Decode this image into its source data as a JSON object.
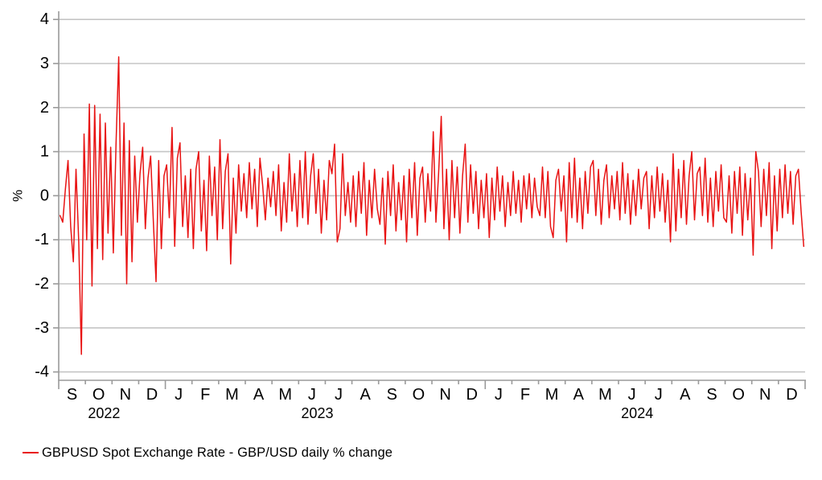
{
  "chart_data": {
    "type": "line",
    "title": "",
    "ylabel": "%",
    "ylim": [
      -4,
      4
    ],
    "y_ticks": [
      4,
      3,
      2,
      1,
      0,
      -1,
      -2,
      -3,
      -4
    ],
    "grid": "horizontal",
    "x_range": "Sep 2022 - Dec 2024",
    "months": [
      "S",
      "O",
      "N",
      "D",
      "J",
      "F",
      "M",
      "A",
      "M",
      "J",
      "J",
      "A",
      "S",
      "O",
      "N",
      "D",
      "J",
      "F",
      "M",
      "A",
      "M",
      "J",
      "J",
      "A",
      "S",
      "O",
      "N",
      "D"
    ],
    "years": [
      {
        "label": "2022",
        "center_month": 1.7
      },
      {
        "label": "2023",
        "center_month": 9.7
      },
      {
        "label": "2024",
        "center_month": 21.7
      }
    ],
    "legend_position": "bottom-left",
    "notable_points": [
      {
        "date_approx": "late Sep 2022",
        "value": -3.6,
        "note": "largest daily fall"
      },
      {
        "date_approx": "mid Nov 2022",
        "value": 3.15,
        "note": "largest daily rise"
      },
      {
        "date_approx": "Nov 2023",
        "value": 1.8,
        "note": "secondary peak"
      }
    ],
    "series": [
      {
        "name": "GBPUSD Spot Exchange Rate - GBP/USD daily % change",
        "color": "#e81313",
        "points_per_month": 10,
        "values": [
          -0.45,
          -0.6,
          0.15,
          0.8,
          -0.7,
          -1.5,
          0.6,
          -1.05,
          -3.6,
          1.4,
          -1.0,
          2.08,
          -2.05,
          2.05,
          -1.2,
          1.85,
          -1.45,
          1.65,
          -0.85,
          1.1,
          -1.3,
          1.2,
          3.15,
          -0.9,
          1.65,
          -2.0,
          1.25,
          -1.5,
          0.9,
          -0.6,
          0.5,
          1.1,
          -0.75,
          0.4,
          0.9,
          -0.6,
          -1.95,
          0.8,
          -1.2,
          0.45,
          0.7,
          -0.5,
          1.55,
          -1.15,
          0.85,
          1.2,
          -0.7,
          0.45,
          -0.95,
          0.6,
          -1.2,
          0.6,
          1.0,
          -0.8,
          0.35,
          -1.25,
          0.9,
          -0.45,
          0.65,
          -1.0,
          1.27,
          -0.75,
          0.55,
          0.95,
          -1.55,
          0.4,
          -0.85,
          0.7,
          -0.35,
          0.5,
          -0.5,
          0.75,
          -0.3,
          0.6,
          -0.7,
          0.85,
          0.25,
          -0.55,
          0.4,
          -0.25,
          0.55,
          -0.45,
          0.7,
          -0.8,
          0.3,
          -0.6,
          0.95,
          -0.35,
          0.5,
          -0.7,
          0.8,
          -0.5,
          1.0,
          -0.65,
          0.45,
          0.95,
          -0.4,
          0.6,
          -0.85,
          0.35,
          -0.55,
          0.8,
          0.5,
          1.17,
          -1.05,
          -0.75,
          0.95,
          -0.45,
          0.3,
          -0.6,
          0.45,
          -0.7,
          0.55,
          -0.4,
          0.75,
          -0.9,
          0.35,
          -0.5,
          0.6,
          -0.3,
          -0.65,
          0.4,
          -1.1,
          0.55,
          -0.45,
          0.7,
          -0.8,
          0.3,
          -0.55,
          0.45,
          -1.05,
          0.6,
          -0.5,
          0.75,
          -0.9,
          0.4,
          0.65,
          -0.6,
          0.5,
          -0.35,
          1.45,
          -0.6,
          0.5,
          1.8,
          -0.75,
          0.6,
          -1.0,
          0.8,
          -0.5,
          0.65,
          -0.85,
          0.45,
          1.17,
          -0.6,
          0.7,
          -0.4,
          0.55,
          -0.75,
          0.35,
          -0.5,
          0.5,
          -0.95,
          0.4,
          -0.55,
          0.65,
          -0.35,
          0.45,
          -0.7,
          0.3,
          -0.45,
          0.55,
          -0.4,
          0.35,
          -0.6,
          0.45,
          -0.3,
          0.5,
          -0.5,
          0.4,
          -0.25,
          -0.45,
          0.65,
          -0.5,
          0.55,
          -0.7,
          -0.95,
          0.35,
          0.6,
          -0.35,
          0.45,
          -1.05,
          0.75,
          -0.5,
          0.85,
          -0.6,
          0.4,
          -0.75,
          0.55,
          -0.4,
          0.65,
          0.8,
          -0.45,
          0.6,
          -0.65,
          0.35,
          0.7,
          -0.5,
          0.45,
          -0.3,
          0.55,
          -0.55,
          0.75,
          -0.4,
          0.5,
          -0.65,
          0.35,
          -0.45,
          0.6,
          -0.3,
          0.4,
          0.55,
          -0.75,
          0.45,
          -0.5,
          0.65,
          -0.35,
          0.5,
          -0.6,
          0.35,
          -1.05,
          0.95,
          -0.8,
          0.6,
          -0.5,
          0.8,
          -0.65,
          0.45,
          1.0,
          -0.55,
          0.5,
          0.65,
          -0.45,
          0.85,
          -0.6,
          0.4,
          -0.7,
          0.55,
          -0.35,
          0.7,
          -0.5,
          -0.6,
          0.45,
          -0.85,
          0.55,
          -0.4,
          0.65,
          -0.9,
          0.5,
          -0.55,
          0.4,
          -1.35,
          1.0,
          0.55,
          -0.7,
          0.6,
          -0.45,
          0.75,
          -1.2,
          0.45,
          -0.8,
          0.6,
          -0.5,
          0.7,
          -0.4,
          0.55,
          -0.65,
          0.45,
          0.6,
          -0.35,
          -1.15
        ]
      }
    ]
  },
  "legend": {
    "label": "GBPUSD Spot Exchange Rate - GBP/USD daily % change",
    "line_color": "#e81313"
  },
  "colors": {
    "line": "#e81313",
    "grid": "#c5c5c5",
    "axis": "#9a9a9a",
    "text": "#000000",
    "background": "#ffffff"
  }
}
